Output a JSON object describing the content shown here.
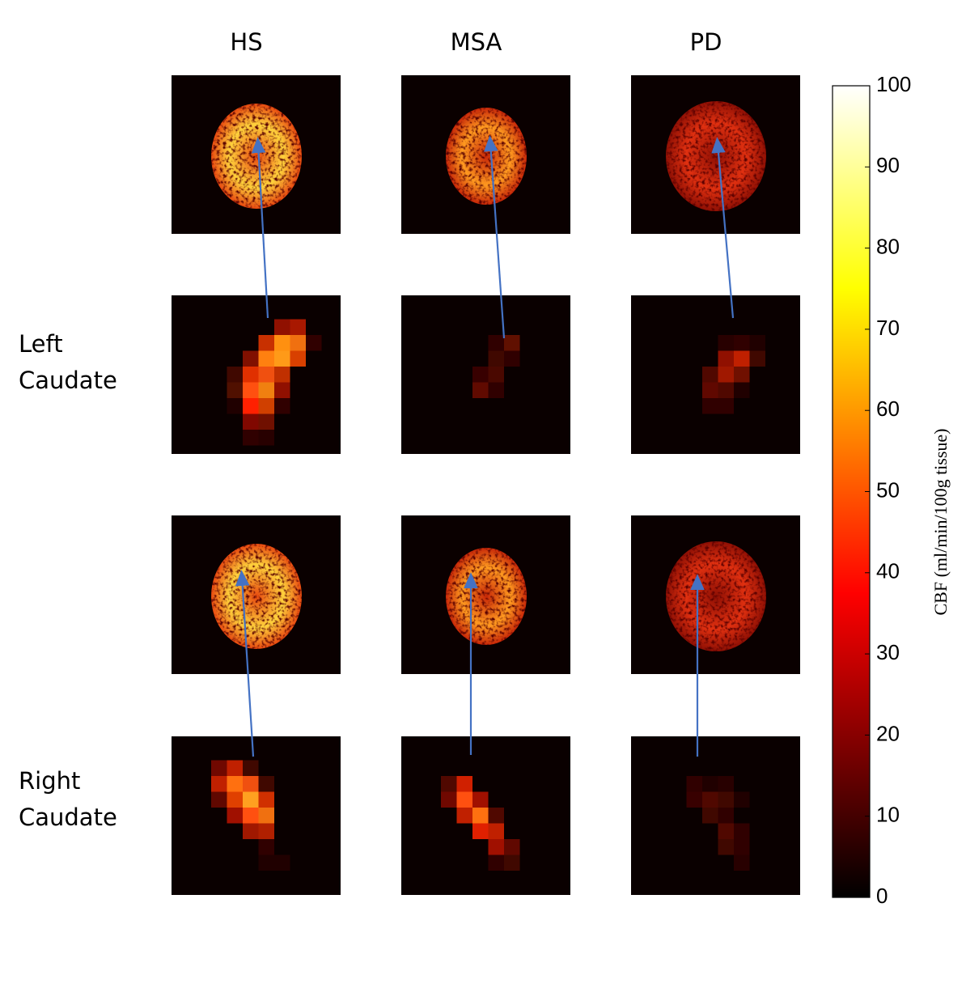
{
  "columns": [
    "HS",
    "MSA",
    "PD"
  ],
  "rows": [
    "Left Caudate",
    "Right Caudate"
  ],
  "colorbar": {
    "label": "CBF (ml/min/100g tissue)",
    "lim": [
      0,
      100
    ],
    "ticks": [
      0,
      10,
      20,
      30,
      40,
      50,
      60,
      70,
      80,
      90,
      100
    ]
  }
}
